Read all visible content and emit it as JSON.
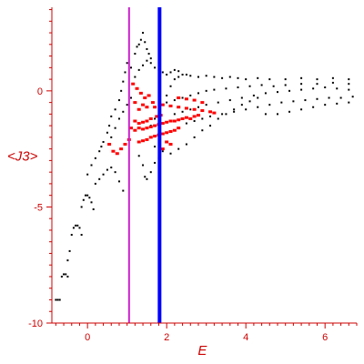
{
  "chart_data": {
    "type": "scatter",
    "title": "",
    "xlabel": "E",
    "ylabel": "<J3>",
    "xlim": [
      -0.9,
      6.8
    ],
    "ylim": [
      -10,
      3.6
    ],
    "grid": false,
    "legend": "none",
    "x_ticks": [
      0,
      2,
      4,
      6
    ],
    "x_tick_labels": [
      "0",
      "2",
      "4",
      "6"
    ],
    "y_ticks": [
      0,
      -5,
      -10
    ],
    "y_tick_labels": [
      "0",
      "-5",
      "-10"
    ],
    "vertical_lines": [
      {
        "x": 1.05,
        "color": "#cc22cc"
      },
      {
        "x": 1.82,
        "color": "#0000ff"
      }
    ],
    "colors": {
      "axis": "#cc0000",
      "black_series": "#000000",
      "red_series": "#ff0000"
    },
    "series": [
      {
        "color": "#000000",
        "marker_size": "small",
        "points": [
          [
            -0.8,
            -9.0
          ],
          [
            -0.75,
            -9.0
          ],
          [
            -0.7,
            -9.0
          ],
          [
            -0.65,
            -8.0
          ],
          [
            -0.6,
            -7.9
          ],
          [
            -0.55,
            -7.9
          ],
          [
            -0.5,
            -8.0
          ],
          [
            -0.5,
            -7.3
          ],
          [
            -0.45,
            -6.9
          ],
          [
            -0.4,
            -6.2
          ],
          [
            -0.35,
            -5.9
          ],
          [
            -0.3,
            -5.8
          ],
          [
            -0.25,
            -5.8
          ],
          [
            -0.2,
            -5.9
          ],
          [
            -0.15,
            -6.2
          ],
          [
            -0.15,
            -5.0
          ],
          [
            -0.1,
            -4.7
          ],
          [
            -0.05,
            -4.5
          ],
          [
            0.0,
            -4.5
          ],
          [
            0.05,
            -4.6
          ],
          [
            0.1,
            -4.8
          ],
          [
            0.15,
            -5.1
          ],
          [
            0.0,
            -3.6
          ],
          [
            0.1,
            -3.2
          ],
          [
            0.2,
            -2.9
          ],
          [
            0.3,
            -2.6
          ],
          [
            0.35,
            -2.4
          ],
          [
            0.4,
            -2.2
          ],
          [
            0.5,
            -1.8
          ],
          [
            0.55,
            -1.5
          ],
          [
            0.6,
            -1.1
          ],
          [
            0.7,
            -0.8
          ],
          [
            0.8,
            -0.4
          ],
          [
            0.85,
            0.0
          ],
          [
            0.9,
            0.4
          ],
          [
            0.95,
            0.8
          ],
          [
            1.0,
            1.2
          ],
          [
            0.2,
            -4.0
          ],
          [
            0.3,
            -3.8
          ],
          [
            0.4,
            -3.6
          ],
          [
            0.5,
            -3.4
          ],
          [
            0.6,
            -3.3
          ],
          [
            0.7,
            -3.5
          ],
          [
            0.8,
            -3.9
          ],
          [
            0.9,
            -4.3
          ],
          [
            0.6,
            -2.0
          ],
          [
            0.7,
            -1.6
          ],
          [
            0.8,
            -1.2
          ],
          [
            0.9,
            -0.9
          ],
          [
            1.0,
            -0.6
          ],
          [
            1.1,
            -0.3
          ],
          [
            1.1,
            1.0
          ],
          [
            1.2,
            1.6
          ],
          [
            1.25,
            1.9
          ],
          [
            1.3,
            2.0
          ],
          [
            1.35,
            2.2
          ],
          [
            1.4,
            2.5
          ],
          [
            1.45,
            2.1
          ],
          [
            1.5,
            1.8
          ],
          [
            1.55,
            1.6
          ],
          [
            1.6,
            1.4
          ],
          [
            1.3,
            -2.8
          ],
          [
            1.4,
            -3.2
          ],
          [
            1.45,
            -3.7
          ],
          [
            1.5,
            -3.8
          ],
          [
            1.6,
            -3.5
          ],
          [
            1.7,
            -3.1
          ],
          [
            1.8,
            -2.9
          ],
          [
            1.2,
            0.6
          ],
          [
            1.3,
            0.9
          ],
          [
            1.4,
            1.1
          ],
          [
            1.5,
            1.3
          ],
          [
            1.6,
            1.2
          ],
          [
            1.7,
            1.0
          ],
          [
            1.8,
            0.9
          ],
          [
            1.9,
            0.8
          ],
          [
            2.0,
            0.7
          ],
          [
            2.1,
            0.8
          ],
          [
            2.2,
            0.9
          ],
          [
            2.3,
            0.85
          ],
          [
            2.4,
            0.7
          ],
          [
            2.5,
            0.7
          ],
          [
            2.6,
            0.65
          ],
          [
            2.8,
            0.6
          ],
          [
            3.0,
            0.65
          ],
          [
            3.2,
            0.6
          ],
          [
            3.4,
            0.55
          ],
          [
            3.6,
            0.6
          ],
          [
            3.8,
            0.55
          ],
          [
            4.0,
            0.5
          ],
          [
            4.3,
            0.55
          ],
          [
            4.6,
            0.5
          ],
          [
            5.0,
            0.5
          ],
          [
            5.4,
            0.55
          ],
          [
            5.8,
            0.5
          ],
          [
            6.2,
            0.55
          ],
          [
            6.6,
            0.5
          ],
          [
            2.0,
            -0.5
          ],
          [
            2.2,
            -0.4
          ],
          [
            2.4,
            -0.3
          ],
          [
            2.6,
            -0.2
          ],
          [
            2.8,
            -0.1
          ],
          [
            3.0,
            0.0
          ],
          [
            3.2,
            0.05
          ],
          [
            3.5,
            0.1
          ],
          [
            3.8,
            0.15
          ],
          [
            4.1,
            0.2
          ],
          [
            4.4,
            0.25
          ],
          [
            4.7,
            0.2
          ],
          [
            5.0,
            0.25
          ],
          [
            5.4,
            0.3
          ],
          [
            5.8,
            0.3
          ],
          [
            6.2,
            0.35
          ],
          [
            6.6,
            0.3
          ],
          [
            2.2,
            -1.0
          ],
          [
            2.4,
            -0.9
          ],
          [
            2.6,
            -0.8
          ],
          [
            2.8,
            -0.7
          ],
          [
            3.0,
            -0.6
          ],
          [
            3.3,
            -0.5
          ],
          [
            3.6,
            -0.4
          ],
          [
            3.9,
            -0.3
          ],
          [
            4.2,
            -0.2
          ],
          [
            4.5,
            -0.1
          ],
          [
            4.8,
            -0.05
          ],
          [
            5.1,
            0.0
          ],
          [
            5.4,
            0.05
          ],
          [
            5.7,
            0.1
          ],
          [
            6.0,
            0.15
          ],
          [
            6.3,
            0.1
          ],
          [
            6.6,
            0.05
          ],
          [
            2.5,
            -1.4
          ],
          [
            2.7,
            -1.3
          ],
          [
            2.9,
            -1.2
          ],
          [
            3.1,
            -1.1
          ],
          [
            3.4,
            -1.0
          ],
          [
            3.7,
            -0.9
          ],
          [
            4.0,
            -0.8
          ],
          [
            4.3,
            -0.7
          ],
          [
            4.6,
            -0.6
          ],
          [
            4.9,
            -0.5
          ],
          [
            5.2,
            -0.45
          ],
          [
            5.5,
            -0.4
          ],
          [
            5.8,
            -0.35
          ],
          [
            6.1,
            -0.3
          ],
          [
            6.4,
            -0.3
          ],
          [
            6.7,
            -0.25
          ],
          [
            1.7,
            -2.4
          ],
          [
            1.9,
            -2.6
          ],
          [
            2.1,
            -2.7
          ],
          [
            2.3,
            -2.5
          ],
          [
            2.5,
            -2.3
          ],
          [
            2.7,
            -2.0
          ],
          [
            2.9,
            -1.7
          ],
          [
            3.1,
            -1.5
          ],
          [
            3.3,
            -1.2
          ],
          [
            3.5,
            -1.0
          ],
          [
            3.7,
            -0.8
          ],
          [
            3.9,
            -0.6
          ],
          [
            4.1,
            -0.45
          ],
          [
            4.3,
            -0.3
          ],
          [
            4.5,
            -1.0
          ],
          [
            4.8,
            -1.0
          ],
          [
            5.1,
            -0.9
          ],
          [
            5.4,
            -0.8
          ],
          [
            5.7,
            -0.7
          ],
          [
            6.0,
            -0.6
          ],
          [
            6.3,
            -0.55
          ],
          [
            6.6,
            -0.5
          ],
          [
            1.6,
            -1.5
          ],
          [
            1.7,
            -1.2
          ],
          [
            1.8,
            -1.0
          ],
          [
            1.9,
            -0.6
          ],
          [
            2.0,
            -0.2
          ],
          [
            2.1,
            0.2
          ],
          [
            2.2,
            0.5
          ],
          [
            2.3,
            0.6
          ]
        ]
      },
      {
        "color": "#ff0000",
        "marker_size": "large",
        "points": [
          [
            0.55,
            -2.3
          ],
          [
            0.65,
            -2.6
          ],
          [
            0.75,
            -2.7
          ],
          [
            0.85,
            -2.5
          ],
          [
            0.95,
            -2.3
          ],
          [
            1.05,
            -2.1
          ],
          [
            1.1,
            -1.6
          ],
          [
            1.2,
            -1.7
          ],
          [
            1.3,
            -1.6
          ],
          [
            1.4,
            -1.65
          ],
          [
            1.5,
            -1.6
          ],
          [
            1.6,
            -1.55
          ],
          [
            1.7,
            -1.5
          ],
          [
            1.8,
            -1.45
          ],
          [
            1.9,
            -1.4
          ],
          [
            2.0,
            -1.35
          ],
          [
            2.1,
            -1.3
          ],
          [
            2.2,
            -1.3
          ],
          [
            2.3,
            -1.25
          ],
          [
            2.4,
            -1.2
          ],
          [
            2.5,
            -1.15
          ],
          [
            2.6,
            -1.2
          ],
          [
            2.7,
            -1.1
          ],
          [
            2.8,
            -1.05
          ],
          [
            1.3,
            -2.2
          ],
          [
            1.4,
            -2.15
          ],
          [
            1.5,
            -2.1
          ],
          [
            1.6,
            -2.0
          ],
          [
            1.7,
            -1.95
          ],
          [
            1.8,
            -1.9
          ],
          [
            1.9,
            -1.85
          ],
          [
            2.0,
            -1.8
          ],
          [
            2.1,
            -1.75
          ],
          [
            2.2,
            -1.7
          ],
          [
            2.3,
            -1.6
          ],
          [
            1.2,
            -0.5
          ],
          [
            1.3,
            -0.8
          ],
          [
            1.4,
            -0.6
          ],
          [
            1.5,
            -0.7
          ],
          [
            1.7,
            -0.7
          ],
          [
            1.9,
            -0.6
          ],
          [
            2.1,
            -0.65
          ],
          [
            2.3,
            -0.7
          ],
          [
            2.5,
            -0.75
          ],
          [
            2.7,
            -0.8
          ],
          [
            2.9,
            -0.85
          ],
          [
            3.1,
            -0.9
          ],
          [
            3.2,
            -0.95
          ],
          [
            1.15,
            0.3
          ],
          [
            1.25,
            0.1
          ],
          [
            1.35,
            -0.1
          ],
          [
            1.45,
            -0.3
          ],
          [
            1.55,
            -0.2
          ],
          [
            1.65,
            -0.5
          ],
          [
            2.3,
            -0.3
          ],
          [
            2.5,
            -0.35
          ],
          [
            2.7,
            -0.4
          ],
          [
            2.9,
            -0.5
          ],
          [
            1.2,
            -1.3
          ],
          [
            1.3,
            -1.4
          ],
          [
            1.4,
            -1.35
          ],
          [
            1.5,
            -1.3
          ],
          [
            1.6,
            -1.2
          ],
          [
            1.75,
            -1.1
          ],
          [
            1.85,
            -1.05
          ],
          [
            2.0,
            -2.2
          ],
          [
            2.1,
            -2.3
          ],
          [
            1.9,
            -2.5
          ]
        ]
      }
    ]
  }
}
